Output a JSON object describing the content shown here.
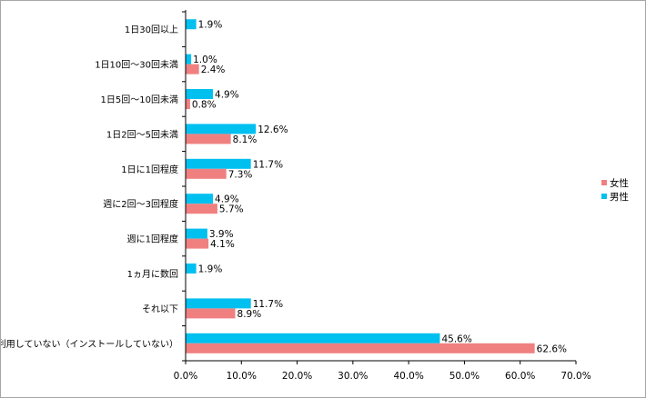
{
  "chart_data": {
    "type": "bar",
    "orientation": "horizontal",
    "categories": [
      "1日30回以上",
      "1日10回～30回未満",
      "1日5回～10回未満",
      "1日2回～5回未満",
      "1日に1回程度",
      "週に2回～3回程度",
      "週に1回程度",
      "1ヵ月に数回",
      "それ以下",
      "利用していない（インストールしていない）"
    ],
    "series": [
      {
        "name": "男性",
        "color": "#00c0f0",
        "values": [
          1.9,
          1.0,
          4.9,
          12.6,
          11.7,
          4.9,
          3.9,
          1.9,
          11.7,
          45.6
        ],
        "labels": [
          "1.9%",
          "1.0%",
          "4.9%",
          "12.6%",
          "11.7%",
          "4.9%",
          "3.9%",
          "1.9%",
          "11.7%",
          "45.6%"
        ]
      },
      {
        "name": "女性",
        "color": "#f08080",
        "values": [
          null,
          2.4,
          0.8,
          8.1,
          7.3,
          5.7,
          4.1,
          null,
          8.9,
          62.6
        ],
        "labels": [
          null,
          "2.4%",
          "0.8%",
          "8.1%",
          "7.3%",
          "5.7%",
          "4.1%",
          null,
          "8.9%",
          "62.6%"
        ]
      }
    ],
    "legend_order": [
      "女性",
      "男性"
    ],
    "legend_position": "right",
    "xlim": [
      0,
      70
    ],
    "xticks": [
      0,
      10,
      20,
      30,
      40,
      50,
      60,
      70
    ],
    "xtick_labels": [
      "0.0%",
      "10.0%",
      "20.0%",
      "30.0%",
      "40.0%",
      "50.0%",
      "60.0%",
      "70.0%"
    ],
    "grid": false
  }
}
